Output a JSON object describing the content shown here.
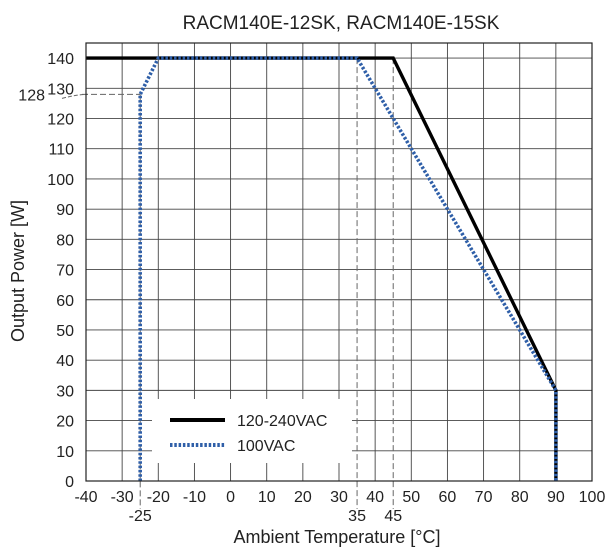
{
  "chart_data": {
    "type": "line",
    "title": "RACM140E-12SK, RACM140E-15SK",
    "xlabel": "Ambient Temperature [°C]",
    "ylabel": "Output Power [W]",
    "xlim": [
      -40,
      100
    ],
    "ylim": [
      0,
      145
    ],
    "xticks": [
      -40,
      -30,
      -20,
      -10,
      0,
      10,
      20,
      30,
      40,
      50,
      60,
      70,
      80,
      90,
      100
    ],
    "yticks": [
      0,
      10,
      20,
      30,
      40,
      50,
      60,
      70,
      80,
      90,
      100,
      110,
      120,
      130,
      140
    ],
    "extra_xticks": [
      -25,
      35,
      45
    ],
    "extra_yticks": [
      128
    ],
    "grid": true,
    "legend_position": "bottom-left",
    "series": [
      {
        "name": "120-240VAC",
        "color": "#000000",
        "style": "solid",
        "points": [
          [
            -40,
            140
          ],
          [
            45,
            140
          ],
          [
            90,
            30
          ],
          [
            90,
            0
          ]
        ]
      },
      {
        "name": "100VAC",
        "color": "#2f5fa8",
        "style": "dotted",
        "points": [
          [
            -25,
            0
          ],
          [
            -25,
            128
          ],
          [
            -20,
            140
          ],
          [
            35,
            140
          ],
          [
            90,
            30
          ],
          [
            90,
            0
          ]
        ]
      }
    ],
    "reference_lines": [
      {
        "axis": "x",
        "value": -25,
        "from": 0,
        "to": 128
      },
      {
        "axis": "x",
        "value": 35,
        "from": 0,
        "to": 140
      },
      {
        "axis": "x",
        "value": 45,
        "from": 0,
        "to": 140
      },
      {
        "axis": "y",
        "value": 128,
        "from": -40,
        "to": -25
      }
    ]
  }
}
